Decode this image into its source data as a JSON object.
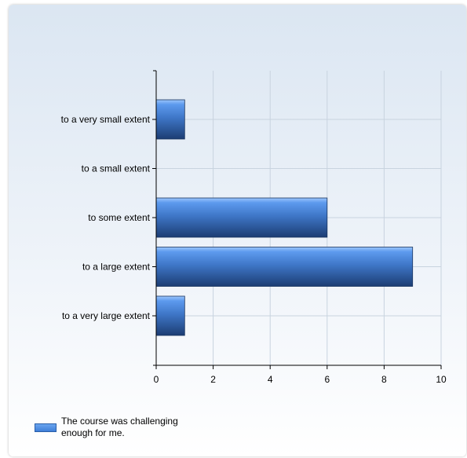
{
  "chart_data": {
    "type": "bar",
    "orientation": "horizontal",
    "categories": [
      "to a very small extent",
      "to a small extent",
      "to some extent",
      "to a large extent",
      "to a very large extent"
    ],
    "series": [
      {
        "name": "The course was challenging enough for me.",
        "values": [
          1,
          0,
          6,
          9,
          1
        ]
      }
    ],
    "xlim": [
      0,
      10
    ],
    "xticks": [
      0,
      2,
      4,
      6,
      8,
      10
    ],
    "grid": true,
    "legend_position": "bottom-left",
    "bar_color": "#4a86d8"
  }
}
